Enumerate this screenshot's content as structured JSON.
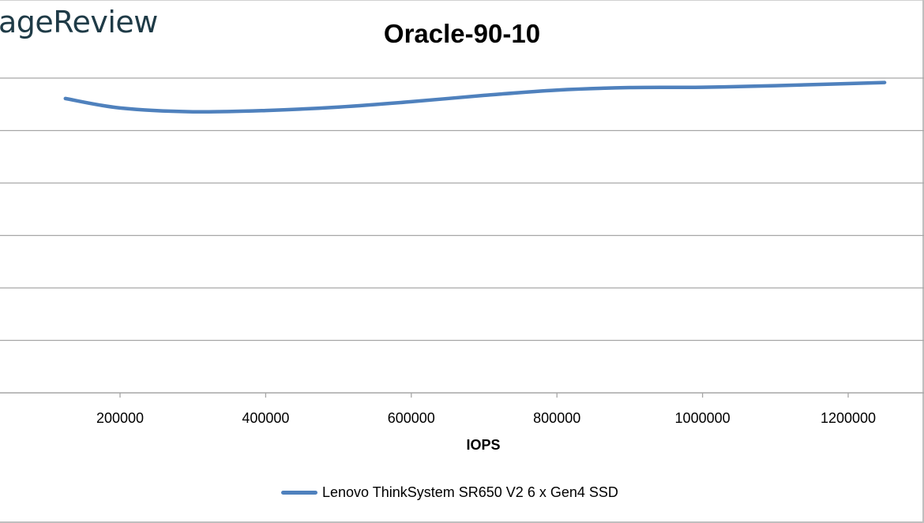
{
  "logo_text": "ageReview",
  "chart_data": {
    "type": "line",
    "title": "Oracle-90-10",
    "xlabel": "IOPS",
    "ylabel": "",
    "x_ticks": [
      200000,
      400000,
      600000,
      800000,
      1000000,
      1200000
    ],
    "x_tick_labels": [
      "200000",
      "400000",
      "600000",
      "800000",
      "1000000",
      "1200000"
    ],
    "xlim": [
      38000,
      1290000
    ],
    "grid": "horizontal",
    "gridline_count": 7,
    "legend_position": "bottom",
    "series": [
      {
        "name": "Lenovo ThinkSystem SR650 V2 6 x Gen4 SSD",
        "color": "#4f81bd",
        "x": [
          125000,
          200000,
          300000,
          400000,
          500000,
          600000,
          700000,
          800000,
          900000,
          1000000,
          1100000,
          1250000
        ],
        "y_norm": [
          0.935,
          0.905,
          0.893,
          0.897,
          0.908,
          0.925,
          0.945,
          0.962,
          0.97,
          0.971,
          0.976,
          0.986
        ]
      }
    ]
  },
  "colors": {
    "grid": "#a6a6a6",
    "series": "#4f81bd",
    "logo": "#1f3b47"
  }
}
